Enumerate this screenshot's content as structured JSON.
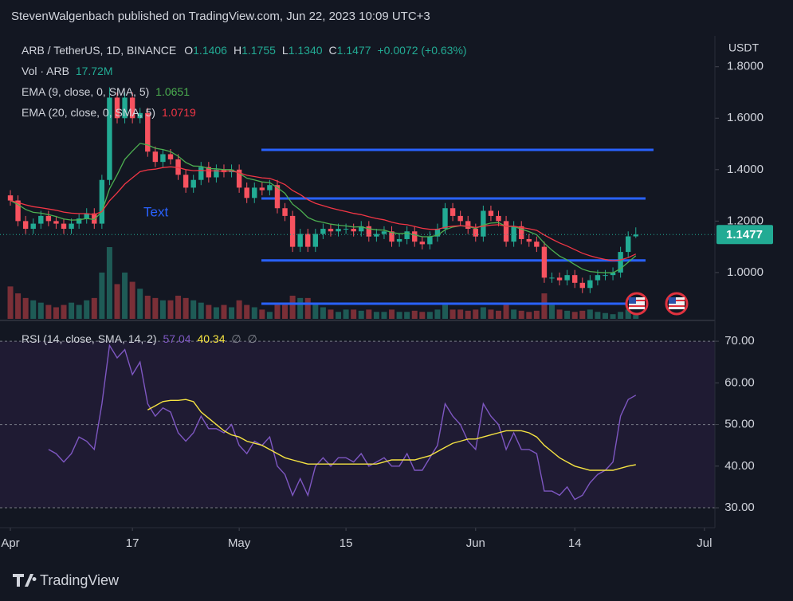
{
  "header": {
    "publisher": "StevenWalgenbach published on TradingView.com, Jun 22, 2023 10:09 UTC+3",
    "symbol": "ARB / TetherUS, 1D, BINANCE",
    "ohlc": [
      {
        "key": "O",
        "value": "1.1406"
      },
      {
        "key": "H",
        "value": "1.1755"
      },
      {
        "key": "L",
        "value": "1.1340"
      },
      {
        "key": "C",
        "value": "1.1477"
      }
    ],
    "change": "+0.0072 (+0.63%)"
  },
  "indicators": {
    "volume": {
      "label": "Vol · ARB",
      "value": "17.72M"
    },
    "ema9": {
      "label": "EMA (9, close, 0, SMA, 5)",
      "value": "1.0651"
    },
    "ema20": {
      "label": "EMA (20, close, 0, SMA, 5)",
      "value": "1.0719"
    },
    "rsi": {
      "label": "RSI (14, close, SMA, 14, 2)",
      "value": "57.04",
      "ma": "40.34",
      "extra": [
        "∅",
        "∅"
      ]
    }
  },
  "currency": "USDT",
  "annotation": "Text",
  "price_tag": "1.1477",
  "brand": "TradingView",
  "chart_data": [
    {
      "type": "candlestick",
      "xlim": [
        -1.36,
        92.16
      ],
      "xticks": [
        {
          "value": 0,
          "label": "Apr"
        },
        {
          "value": 16,
          "label": "17"
        },
        {
          "value": 30,
          "label": "May"
        },
        {
          "value": 44,
          "label": "15"
        },
        {
          "value": 61,
          "label": "Jun"
        },
        {
          "value": 74,
          "label": "14"
        },
        {
          "value": 91,
          "label": "Jul"
        }
      ],
      "ylim": [
        0.82,
        1.92
      ],
      "yticks": [
        {
          "value": 1.0,
          "label": "1.0000"
        },
        {
          "value": 1.2,
          "label": "1.2000"
        },
        {
          "value": 1.4,
          "label": "1.4000"
        },
        {
          "value": 1.6,
          "label": "1.6000"
        },
        {
          "value": 1.8,
          "label": "1.8000"
        }
      ],
      "up_color": "#22ab94",
      "down_color": "#f7525f",
      "open": [
        1.3,
        1.28,
        1.2,
        1.17,
        1.19,
        1.22,
        1.2,
        1.19,
        1.17,
        1.19,
        1.21,
        1.23,
        1.19,
        1.36,
        1.68,
        1.6,
        1.68,
        1.6,
        1.62,
        1.47,
        1.43,
        1.46,
        1.44,
        1.38,
        1.33,
        1.36,
        1.41,
        1.37,
        1.4,
        1.39,
        1.4,
        1.33,
        1.29,
        1.33,
        1.32,
        1.34,
        1.25,
        1.22,
        1.1,
        1.15,
        1.1,
        1.15,
        1.17,
        1.16,
        1.17,
        1.17,
        1.16,
        1.18,
        1.14,
        1.15,
        1.16,
        1.12,
        1.13,
        1.16,
        1.12,
        1.11,
        1.14,
        1.17,
        1.25,
        1.22,
        1.2,
        1.17,
        1.14,
        1.24,
        1.22,
        1.2,
        1.12,
        1.18,
        1.13,
        1.12,
        1.1,
        0.98,
        0.98,
        0.97,
        0.99,
        0.96,
        0.94,
        0.97,
        0.99,
        0.99,
        1.0,
        1.08,
        1.1406
      ],
      "high": [
        1.32,
        1.3,
        1.22,
        1.21,
        1.24,
        1.24,
        1.22,
        1.21,
        1.21,
        1.23,
        1.25,
        1.25,
        1.38,
        1.72,
        1.7,
        1.7,
        1.7,
        1.64,
        1.64,
        1.49,
        1.48,
        1.48,
        1.46,
        1.4,
        1.38,
        1.43,
        1.43,
        1.42,
        1.42,
        1.42,
        1.42,
        1.35,
        1.35,
        1.35,
        1.36,
        1.36,
        1.27,
        1.24,
        1.17,
        1.17,
        1.17,
        1.19,
        1.19,
        1.19,
        1.19,
        1.19,
        1.2,
        1.2,
        1.17,
        1.18,
        1.18,
        1.15,
        1.18,
        1.18,
        1.14,
        1.16,
        1.19,
        1.27,
        1.27,
        1.24,
        1.22,
        1.19,
        1.26,
        1.26,
        1.24,
        1.22,
        1.2,
        1.2,
        1.15,
        1.14,
        1.12,
        1.0,
        1.0,
        1.01,
        1.01,
        0.98,
        0.99,
        1.01,
        1.01,
        1.02,
        1.1,
        1.16,
        1.1755
      ],
      "low": [
        1.26,
        1.18,
        1.15,
        1.15,
        1.17,
        1.18,
        1.17,
        1.15,
        1.15,
        1.17,
        1.19,
        1.17,
        1.17,
        1.34,
        1.58,
        1.58,
        1.58,
        1.58,
        1.45,
        1.41,
        1.41,
        1.42,
        1.36,
        1.31,
        1.31,
        1.34,
        1.35,
        1.35,
        1.37,
        1.37,
        1.31,
        1.27,
        1.27,
        1.3,
        1.3,
        1.23,
        1.2,
        1.08,
        1.08,
        1.08,
        1.08,
        1.13,
        1.14,
        1.14,
        1.15,
        1.14,
        1.14,
        1.12,
        1.12,
        1.13,
        1.1,
        1.1,
        1.11,
        1.1,
        1.09,
        1.09,
        1.12,
        1.15,
        1.2,
        1.18,
        1.15,
        1.12,
        1.12,
        1.2,
        1.18,
        1.1,
        1.1,
        1.11,
        1.1,
        1.08,
        0.96,
        0.96,
        0.95,
        0.95,
        0.94,
        0.92,
        0.92,
        0.95,
        0.97,
        0.97,
        0.98,
        1.06,
        1.134
      ],
      "close": [
        1.28,
        1.2,
        1.17,
        1.19,
        1.22,
        1.2,
        1.19,
        1.17,
        1.19,
        1.21,
        1.23,
        1.19,
        1.36,
        1.68,
        1.6,
        1.68,
        1.6,
        1.62,
        1.47,
        1.43,
        1.46,
        1.44,
        1.38,
        1.33,
        1.36,
        1.41,
        1.37,
        1.4,
        1.39,
        1.4,
        1.33,
        1.29,
        1.33,
        1.32,
        1.34,
        1.25,
        1.22,
        1.1,
        1.15,
        1.1,
        1.15,
        1.17,
        1.16,
        1.17,
        1.17,
        1.16,
        1.18,
        1.14,
        1.15,
        1.16,
        1.12,
        1.13,
        1.16,
        1.12,
        1.11,
        1.14,
        1.17,
        1.25,
        1.22,
        1.2,
        1.17,
        1.14,
        1.24,
        1.22,
        1.2,
        1.12,
        1.18,
        1.13,
        1.12,
        1.1,
        0.98,
        0.98,
        0.97,
        0.99,
        0.96,
        0.94,
        0.97,
        0.99,
        0.99,
        1.0,
        1.08,
        1.1406,
        1.1477
      ],
      "volume": {
        "up_color": "#1e5b56",
        "down_color": "#7a2f37",
        "values": [
          140,
          110,
          90,
          80,
          70,
          60,
          50,
          60,
          70,
          60,
          80,
          90,
          200,
          310,
          150,
          200,
          160,
          130,
          100,
          90,
          80,
          80,
          100,
          90,
          80,
          70,
          60,
          50,
          60,
          50,
          80,
          60,
          50,
          40,
          30,
          60,
          60,
          100,
          90,
          90,
          70,
          50,
          40,
          30,
          40,
          40,
          35,
          40,
          30,
          30,
          40,
          30,
          30,
          35,
          30,
          30,
          40,
          60,
          40,
          40,
          35,
          40,
          50,
          40,
          35,
          60,
          40,
          35,
          30,
          35,
          110,
          60,
          40,
          35,
          30,
          35,
          40,
          30,
          25,
          20,
          30,
          40,
          17.72
        ]
      },
      "series": [
        {
          "name": "EMA 9",
          "color": "#4caf50",
          "values": [
            1.28,
            1.264,
            1.245,
            1.234,
            1.231,
            1.225,
            1.218,
            1.208,
            1.204,
            1.205,
            1.21,
            1.206,
            1.237,
            1.325,
            1.38,
            1.44,
            1.472,
            1.502,
            1.496,
            1.483,
            1.478,
            1.47,
            1.452,
            1.428,
            1.414,
            1.413,
            1.404,
            1.403,
            1.4,
            1.4,
            1.386,
            1.367,
            1.36,
            1.352,
            1.35,
            1.33,
            1.308,
            1.266,
            1.243,
            1.214,
            1.201,
            1.195,
            1.188,
            1.184,
            1.181,
            1.177,
            1.178,
            1.17,
            1.166,
            1.165,
            1.156,
            1.151,
            1.153,
            1.146,
            1.139,
            1.139,
            1.145,
            1.166,
            1.177,
            1.182,
            1.179,
            1.171,
            1.185,
            1.192,
            1.194,
            1.179,
            1.179,
            1.169,
            1.159,
            1.147,
            1.114,
            1.087,
            1.064,
            1.049,
            1.031,
            1.013,
            1.004,
            1.001,
            0.999,
            0.999,
            1.015,
            1.04,
            1.0651
          ]
        },
        {
          "name": "EMA 20",
          "color": "#f23645",
          "values": [
            1.28,
            1.272,
            1.263,
            1.256,
            1.252,
            1.247,
            1.242,
            1.235,
            1.231,
            1.229,
            1.229,
            1.225,
            1.237,
            1.279,
            1.31,
            1.344,
            1.368,
            1.392,
            1.399,
            1.402,
            1.408,
            1.411,
            1.408,
            1.4,
            1.396,
            1.397,
            1.395,
            1.395,
            1.394,
            1.395,
            1.388,
            1.378,
            1.373,
            1.368,
            1.366,
            1.355,
            1.342,
            1.319,
            1.303,
            1.283,
            1.269,
            1.26,
            1.251,
            1.244,
            1.237,
            1.23,
            1.225,
            1.217,
            1.21,
            1.205,
            1.196,
            1.189,
            1.186,
            1.179,
            1.172,
            1.168,
            1.168,
            1.176,
            1.18,
            1.182,
            1.18,
            1.175,
            1.18,
            1.184,
            1.186,
            1.18,
            1.18,
            1.175,
            1.17,
            1.164,
            1.146,
            1.13,
            1.115,
            1.103,
            1.089,
            1.075,
            1.065,
            1.057,
            1.051,
            1.046,
            1.049,
            1.058,
            1.0719
          ]
        }
      ],
      "levels": {
        "color": "#2962ff",
        "values": [
          1.477,
          1.288,
          1.047,
          0.879
        ]
      }
    },
    {
      "type": "line",
      "xlim": [
        -1.36,
        92.16
      ],
      "ylim": [
        25.6,
        75
      ],
      "yticks": [
        {
          "value": 30,
          "label": "30.00"
        },
        {
          "value": 40,
          "label": "40.00"
        },
        {
          "value": 50,
          "label": "50.00"
        },
        {
          "value": 60,
          "label": "60.00"
        },
        {
          "value": 70,
          "label": "70.00"
        }
      ],
      "hlines": [
        30,
        50,
        70
      ],
      "band": [
        30,
        70
      ],
      "band_color": "#1f1b33",
      "series": [
        {
          "name": "RSI",
          "color": "#7e57c2",
          "values": [
            null,
            null,
            null,
            null,
            null,
            44,
            43,
            41,
            43,
            47,
            46,
            44,
            55,
            69,
            66,
            68,
            62,
            65,
            55,
            52,
            54,
            53,
            48,
            46,
            48,
            52,
            49,
            49,
            48,
            50,
            45,
            43,
            46,
            45,
            47,
            40,
            38,
            33,
            37,
            33,
            40,
            42,
            40,
            42,
            42,
            41,
            43,
            40,
            41,
            42,
            40,
            40,
            43,
            39,
            39,
            42,
            45,
            55,
            52,
            50,
            46,
            44,
            55,
            52,
            50,
            44,
            48,
            44,
            44,
            43,
            34,
            34,
            33,
            35,
            32,
            33,
            36,
            38,
            39,
            41,
            52,
            56,
            57.04
          ]
        },
        {
          "name": "RSI MA",
          "color": "#f5e342",
          "values": [
            null,
            null,
            null,
            null,
            null,
            null,
            null,
            null,
            null,
            null,
            null,
            null,
            null,
            null,
            null,
            null,
            null,
            null,
            53.5,
            54.5,
            55.5,
            55.8,
            55.8,
            56,
            55.5,
            53,
            51.5,
            50,
            48.5,
            47.5,
            47,
            46,
            45.5,
            45,
            44,
            43,
            42,
            41.5,
            41,
            40.5,
            40.5,
            40.5,
            40.5,
            40.5,
            40.5,
            40.5,
            40.5,
            40.5,
            40.5,
            41,
            41.5,
            41.5,
            41.5,
            41.5,
            42,
            42.5,
            43.5,
            44.5,
            45.5,
            46,
            46.5,
            46.5,
            47,
            47.5,
            48,
            48.5,
            48.5,
            48.5,
            48,
            47,
            45,
            43.5,
            42,
            41,
            40,
            39.5,
            39,
            39,
            39,
            39,
            39.5,
            40,
            40.34
          ]
        }
      ]
    }
  ]
}
